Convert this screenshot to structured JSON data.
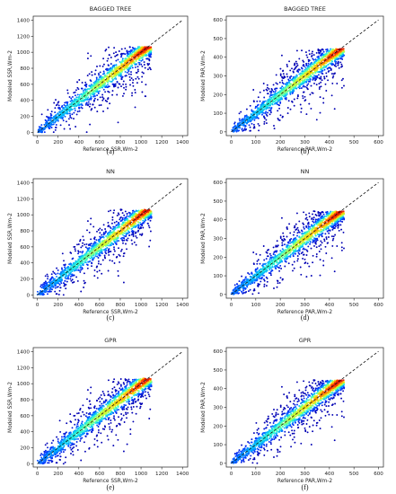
{
  "chart_data": [
    {
      "type": "scatter",
      "panel_label": "(a)",
      "title": "BAGGED TREE",
      "xlabel": "Reference SSR,Wm-2",
      "ylabel": "Modeled SSR,Wm-2",
      "xlim": [
        -40,
        1450
      ],
      "ylim": [
        -40,
        1450
      ],
      "xticks": [
        0,
        200,
        400,
        600,
        800,
        1000,
        1200,
        1400
      ],
      "yticks": [
        0,
        200,
        400,
        600,
        800,
        1000,
        1200,
        1400
      ],
      "data_max": 1100,
      "reference_line": {
        "style": "dashed",
        "from": [
          0,
          0
        ],
        "to": [
          1400,
          1400
        ]
      },
      "colormap": [
        "#0000b3",
        "#0033ff",
        "#00b3ff",
        "#33ffcc",
        "#ccff33",
        "#ffcc00",
        "#ff3300",
        "#b30000"
      ],
      "grid": false,
      "legend": "none"
    },
    {
      "type": "scatter",
      "panel_label": "(b)",
      "title": "BAGGED TREE",
      "xlabel": "Reference PAR,Wm-2",
      "ylabel": "Modeled PAR,Wm-2",
      "xlim": [
        -20,
        620
      ],
      "ylim": [
        -20,
        620
      ],
      "xticks": [
        0,
        100,
        200,
        300,
        400,
        500,
        600
      ],
      "yticks": [
        0,
        100,
        200,
        300,
        400,
        500,
        600
      ],
      "data_max": 460,
      "reference_line": {
        "style": "dashed",
        "from": [
          0,
          0
        ],
        "to": [
          600,
          600
        ]
      },
      "colormap": [
        "#0000b3",
        "#0033ff",
        "#00b3ff",
        "#33ffcc",
        "#ccff33",
        "#ffcc00",
        "#ff3300",
        "#b30000"
      ],
      "grid": false,
      "legend": "none"
    },
    {
      "type": "scatter",
      "panel_label": "(c)",
      "title": "NN",
      "xlabel": "Reference SSR,Wm-2",
      "ylabel": "Modeled SSR,Wm-2",
      "xlim": [
        -40,
        1450
      ],
      "ylim": [
        -40,
        1450
      ],
      "xticks": [
        0,
        200,
        400,
        600,
        800,
        1000,
        1200,
        1400
      ],
      "yticks": [
        0,
        200,
        400,
        600,
        800,
        1000,
        1200,
        1400
      ],
      "data_max": 1100,
      "reference_line": {
        "style": "dashed",
        "from": [
          0,
          0
        ],
        "to": [
          1400,
          1400
        ]
      },
      "colormap": [
        "#0000b3",
        "#0033ff",
        "#00b3ff",
        "#33ffcc",
        "#ccff33",
        "#ffcc00",
        "#ff3300",
        "#b30000"
      ],
      "grid": false,
      "legend": "none"
    },
    {
      "type": "scatter",
      "panel_label": "(d)",
      "title": "NN",
      "xlabel": "Reference PAR,Wm-2",
      "ylabel": "Modeled PAR,Wm-2",
      "xlim": [
        -20,
        620
      ],
      "ylim": [
        -20,
        620
      ],
      "xticks": [
        0,
        100,
        200,
        300,
        400,
        500,
        600
      ],
      "yticks": [
        0,
        100,
        200,
        300,
        400,
        500,
        600
      ],
      "data_max": 460,
      "reference_line": {
        "style": "dashed",
        "from": [
          0,
          0
        ],
        "to": [
          600,
          600
        ]
      },
      "colormap": [
        "#0000b3",
        "#0033ff",
        "#00b3ff",
        "#33ffcc",
        "#ccff33",
        "#ffcc00",
        "#ff3300",
        "#b30000"
      ],
      "grid": false,
      "legend": "none"
    },
    {
      "type": "scatter",
      "panel_label": "(e)",
      "title": "GPR",
      "xlabel": "Reference SSR,Wm-2",
      "ylabel": "Modeled SSR,Wm-2",
      "xlim": [
        -40,
        1450
      ],
      "ylim": [
        -40,
        1450
      ],
      "xticks": [
        0,
        200,
        400,
        600,
        800,
        1000,
        1200,
        1400
      ],
      "yticks": [
        0,
        200,
        400,
        600,
        800,
        1000,
        1200,
        1400
      ],
      "data_max": 1100,
      "reference_line": {
        "style": "dashed",
        "from": [
          0,
          0
        ],
        "to": [
          1400,
          1400
        ]
      },
      "colormap": [
        "#0000b3",
        "#0033ff",
        "#00b3ff",
        "#33ffcc",
        "#ccff33",
        "#ffcc00",
        "#ff3300",
        "#b30000"
      ],
      "grid": false,
      "legend": "none"
    },
    {
      "type": "scatter",
      "panel_label": "(f)",
      "title": "GPR",
      "xlabel": "Reference PAR,Wm-2",
      "ylabel": "Modeled PAR,Wm-2",
      "xlim": [
        -20,
        620
      ],
      "ylim": [
        -20,
        620
      ],
      "xticks": [
        0,
        100,
        200,
        300,
        400,
        500,
        600
      ],
      "yticks": [
        0,
        100,
        200,
        300,
        400,
        500,
        600
      ],
      "data_max": 460,
      "reference_line": {
        "style": "dashed",
        "from": [
          0,
          0
        ],
        "to": [
          600,
          600
        ]
      },
      "colormap": [
        "#0000b3",
        "#0033ff",
        "#00b3ff",
        "#33ffcc",
        "#ccff33",
        "#ffcc00",
        "#ff3300",
        "#b30000"
      ],
      "grid": false,
      "legend": "none"
    }
  ]
}
